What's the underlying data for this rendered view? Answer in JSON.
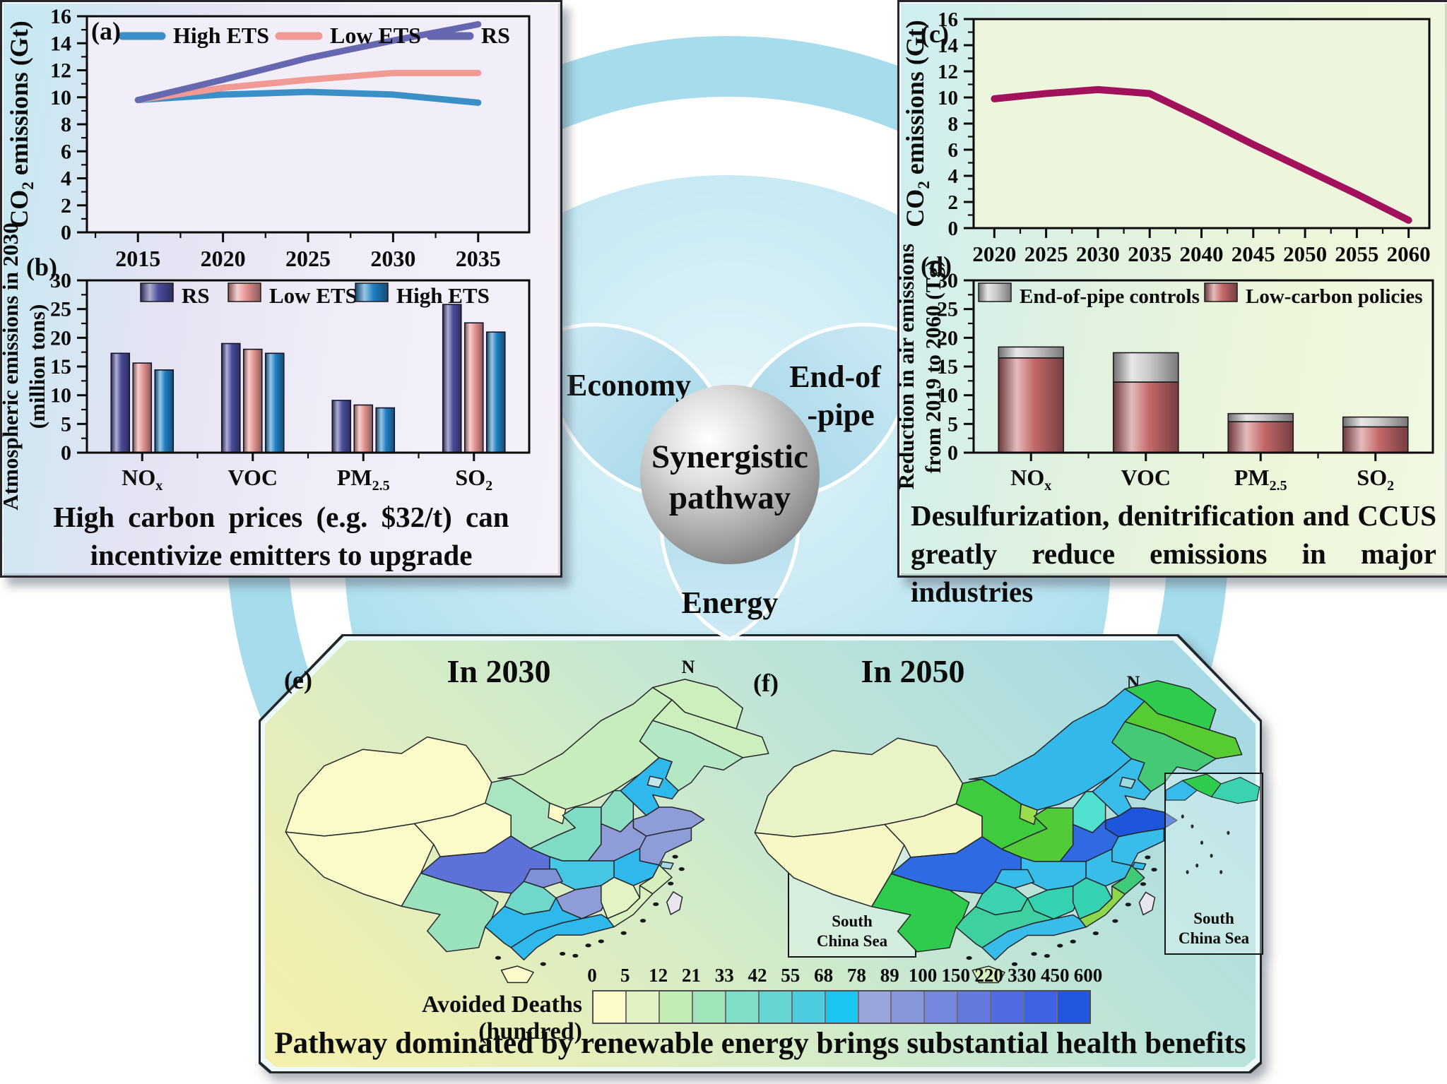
{
  "panel_labels": {
    "a": "(a)",
    "b": "(b)",
    "c": "(c)",
    "d": "(d)",
    "e": "(e)",
    "f": "(f)"
  },
  "captions": {
    "left_line1": "High carbon prices (e.g. $32/t) can",
    "left_line2": "incentivize emitters to upgrade",
    "right_line1": "Desulfurization, denitrification and CCUS",
    "right_line2": "greatly reduce emissions in major industries",
    "bottom": "Pathway dominated by renewable energy brings substantial health benefits"
  },
  "center": {
    "sphere_line1": "Synergistic",
    "sphere_line2": "pathway",
    "petal_economy": "Economy",
    "petal_endofpipe_1": "End-of",
    "petal_endofpipe_2": "-pipe",
    "petal_energy": "Energy"
  },
  "maps": {
    "legend_label": "Avoided Deaths (hundred)",
    "north_label": "N",
    "inset_label_1": "South",
    "inset_label_2": "China Sea",
    "scale_ticks": [
      0,
      5,
      12,
      21,
      33,
      42,
      55,
      68,
      78,
      89,
      100,
      150,
      220,
      330,
      450,
      600
    ],
    "scale_colors": [
      "#fbfbca",
      "#e1f3c1",
      "#c4edb6",
      "#a0e5b9",
      "#81dec6",
      "#66d6d2",
      "#4cccde",
      "#19c5f1",
      "#9aa5dc",
      "#8897da",
      "#7487dc",
      "#6379de",
      "#4f6ce2",
      "#3f63e4",
      "#2156df"
    ],
    "e": {
      "panel_label": "(e)",
      "title": "In 2030",
      "inset_colors": [
        "#36bbec",
        "#57c73a",
        "#8fdfc5"
      ],
      "province_colors": {
        "xinjiang": "#fbfbca",
        "tibet": "#fbfbca",
        "qinghai": "#fbfbca",
        "gansu": "#a9e5c0",
        "inner_mongolia": "#c8edbc",
        "ningxia": "#fbfbca",
        "heilongjiang": "#cdeebd",
        "jilin": "#cdeebd",
        "liaoning": "#b4e7c4",
        "hebei": "#2fb8ec",
        "beijing": "#bfe8ea",
        "shanxi": "#8fdfc5",
        "shaanxi": "#7edcc4",
        "shandong": "#8e9cd8",
        "henan": "#8e9cd8",
        "jiangsu": "#8e9cd8",
        "shanghai": "#9fd9e6",
        "anhui": "#2fb8ec",
        "hubei": "#45c6e4",
        "sichuan": "#5c72d8",
        "chongqing": "#8090d6",
        "guizhou": "#6fd8cb",
        "yunnan": "#9ae2bc",
        "hunan": "#8e9cd8",
        "jiangxi": "#e2f4c2",
        "zhejiang": "#d5f0bd",
        "fujian": "#d9f1bf",
        "guangdong": "#2fb8ec",
        "guangxi": "#2fb8ec",
        "hainan": "#fbfbca",
        "taiwan": "#e9e5ef"
      }
    },
    "f": {
      "panel_label": "(f)",
      "title": "In 2050",
      "inset_colors": [
        "#36bbec",
        "#2ecb4d",
        "#3bd2b0"
      ],
      "province_colors": {
        "xinjiang": "#e9f4c6",
        "tibet": "#f8f8c6",
        "qinghai": "#f4f7c4",
        "gansu": "#3fcb3f",
        "inner_mongolia": "#33b9e9",
        "ningxia": "#9bdc4e",
        "heilongjiang": "#2ecb4d",
        "jilin": "#57cb32",
        "liaoning": "#44ca74",
        "hebei": "#38bce9",
        "beijing": "#9adbe2",
        "shanxi": "#4fe0d0",
        "shaanxi": "#52cb38",
        "shandong": "#1d55dc",
        "henan": "#2f6ae2",
        "jiangsu": "#38bce9",
        "shanghai": "#38bce9",
        "anhui": "#38bce9",
        "hubei": "#38bce9",
        "sichuan": "#2e6ae2",
        "chongqing": "#38bce9",
        "guizhou": "#3bd2b0",
        "yunnan": "#2ecb4d",
        "hunan": "#35d2b2",
        "jiangxi": "#35d2b2",
        "zhejiang": "#3fca78",
        "fujian": "#8cd84a",
        "guangdong": "#38bce9",
        "guangxi": "#3ed0a0",
        "hainan": "#d8f0bc",
        "taiwan": "#e9e5ef"
      }
    }
  },
  "chart_data": [
    {
      "id": "a",
      "type": "line",
      "ylabel_parts": [
        {
          "t": "CO"
        },
        {
          "t": "2",
          "sub": true
        },
        {
          "t": " emissions (Gt)"
        }
      ],
      "x": [
        2015,
        2020,
        2025,
        2030,
        2035
      ],
      "ylim": [
        0,
        16
      ],
      "ytick_step": 2,
      "series": [
        {
          "name": "High ETS",
          "color": "#3a8fc7",
          "values": [
            9.8,
            10.2,
            10.4,
            10.2,
            9.6
          ]
        },
        {
          "name": "Low ETS",
          "color": "#f09a93",
          "values": [
            9.8,
            10.7,
            11.3,
            11.8,
            11.8
          ]
        },
        {
          "name": "RS",
          "color": "#6568b0",
          "values": [
            9.8,
            11.3,
            12.9,
            14.2,
            15.4
          ]
        }
      ],
      "legend_position": "top-inside",
      "grid": false
    },
    {
      "id": "b",
      "type": "grouped-bar",
      "ylabel_lines": [
        [
          {
            "t": "Atmospheric emissions in 2030"
          }
        ],
        [
          {
            "t": "(million tons)"
          }
        ]
      ],
      "categories": [
        [
          {
            "t": "NO"
          },
          {
            "t": "x",
            "sub": true
          }
        ],
        [
          {
            "t": "VOC"
          }
        ],
        [
          {
            "t": "PM"
          },
          {
            "t": "2.5",
            "sub": true
          }
        ],
        [
          {
            "t": "SO"
          },
          {
            "t": "2",
            "sub": true
          }
        ]
      ],
      "ylim": [
        0,
        30
      ],
      "ytick_step": 5,
      "series": [
        {
          "name": "RS",
          "color": "#4a4c9c",
          "values": [
            17.3,
            19.0,
            9.1,
            25.8
          ]
        },
        {
          "name": "Low ETS",
          "color": "#e59492",
          "values": [
            15.6,
            18.0,
            8.3,
            22.6
          ]
        },
        {
          "name": "High ETS",
          "color": "#1f80c4",
          "values": [
            14.4,
            17.3,
            7.8,
            21.0
          ]
        }
      ],
      "legend_position": "top-inside",
      "grid": false
    },
    {
      "id": "c",
      "type": "line",
      "ylabel_parts": [
        {
          "t": "CO"
        },
        {
          "t": "2",
          "sub": true
        },
        {
          "t": " emissions (Gt)"
        }
      ],
      "x": [
        2020,
        2025,
        2030,
        2035,
        2040,
        2045,
        2050,
        2055,
        2060
      ],
      "ylim": [
        0,
        16
      ],
      "ytick_step": 2,
      "series": [
        {
          "name": "Synergistic pathway",
          "color": "#a2125c",
          "values": [
            9.9,
            10.3,
            10.6,
            10.3,
            8.4,
            6.4,
            4.5,
            2.6,
            0.6
          ]
        }
      ],
      "legend_position": "none",
      "grid": false
    },
    {
      "id": "d",
      "type": "stacked-bar",
      "ylabel_lines": [
        [
          {
            "t": "Reduction in air emissions"
          }
        ],
        [
          {
            "t": "from 2019 to 2060 (Tg)"
          }
        ]
      ],
      "categories": [
        [
          {
            "t": "NO"
          },
          {
            "t": "x",
            "sub": true
          }
        ],
        [
          {
            "t": "VOC"
          }
        ],
        [
          {
            "t": "PM"
          },
          {
            "t": "2.5",
            "sub": true
          }
        ],
        [
          {
            "t": "SO"
          },
          {
            "t": "2",
            "sub": true
          }
        ]
      ],
      "ylim": [
        0,
        30
      ],
      "ytick_step": 5,
      "series": [
        {
          "name": "Low-carbon policies",
          "color": "#c4686a",
          "values": [
            16.5,
            12.3,
            5.4,
            4.5
          ]
        },
        {
          "name": "End-of-pipe controls",
          "color": "#c9c9c9",
          "values": [
            1.9,
            5.1,
            1.4,
            1.7
          ]
        }
      ],
      "legend_position": "top-inside",
      "grid": false
    }
  ]
}
